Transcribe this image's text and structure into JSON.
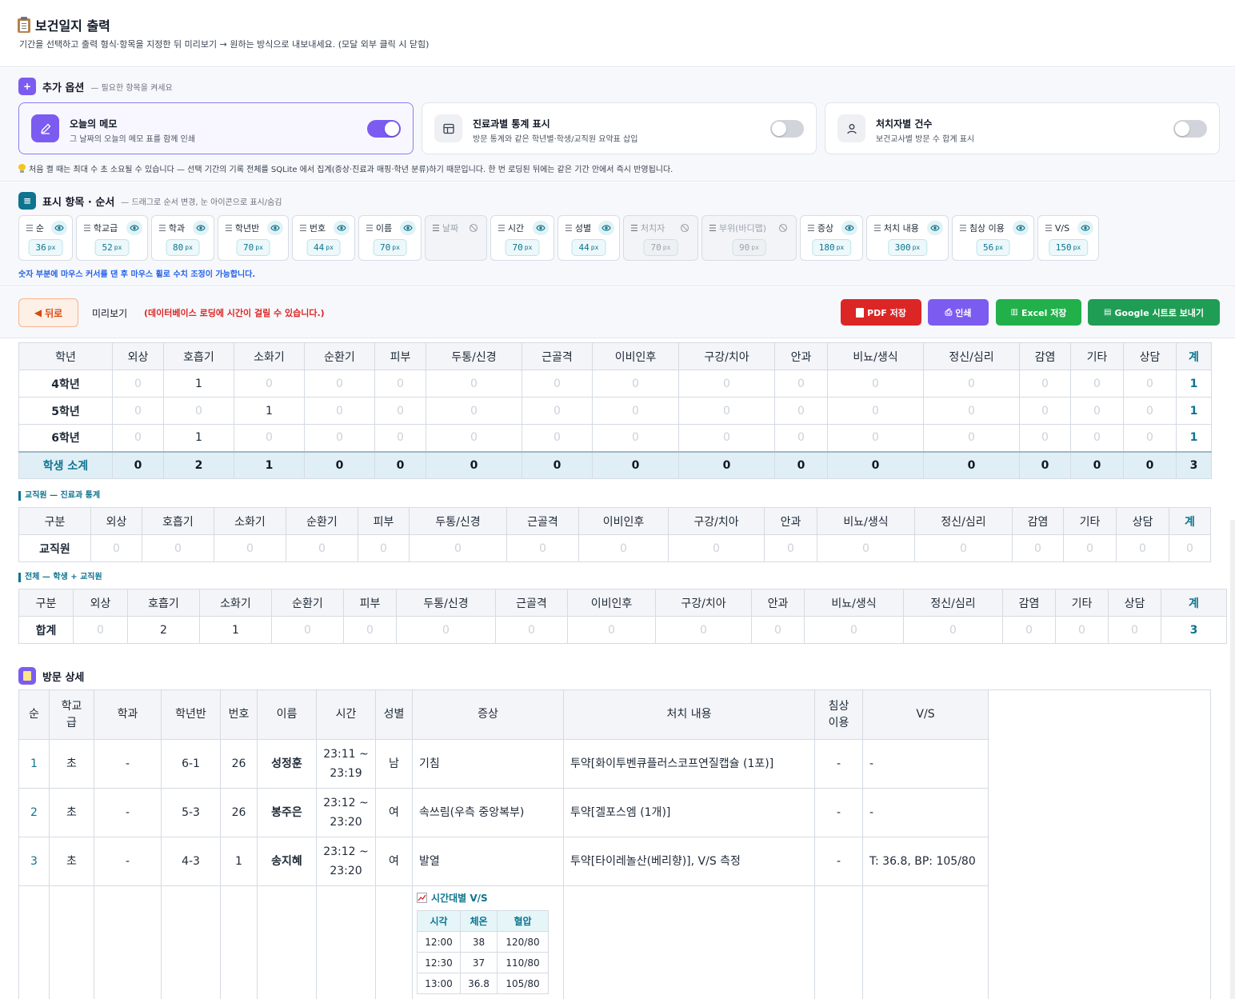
{
  "header": {
    "title": "보건일지 출력",
    "subtitle": "기간을 선택하고 출력 형식·항목을 지정한 뒤 미리보기 → 원하는 방식으로 내보내세요. (모달 외부 클릭 시 닫힘)"
  },
  "options": {
    "badge": "+",
    "title": "추가 옵션",
    "desc": "— 필요한 항목을 켜세요",
    "cards": [
      {
        "name": "오늘의 메모",
        "desc": "그 날짜의 오늘의 메모 표를 함께 인쇄",
        "on": true,
        "icon": "pencil-icon"
      },
      {
        "name": "진료과별 통계 표시",
        "desc": "방문 통계와 같은 학년별·학생/교직원 요약표 삽입",
        "on": false,
        "icon": "table-icon"
      },
      {
        "name": "처치자별 건수",
        "desc": "보건교사별 방문 수 합계 표시",
        "on": false,
        "icon": "person-icon"
      }
    ],
    "tip": "처음 켤 때는 최대 수 초 소요될 수 있습니다 — 선택 기간의 기록 전체를 SQLite 에서 집계(증상·진료과 매핑·학년 분류)하기 때문입니다. 한 번 로딩된 뒤에는 같은 기간 안에서 즉시 반영됩니다."
  },
  "columns": {
    "badge": "≡",
    "title": "표시 항목 · 순서",
    "desc": "— 드래그로 순서 변경, 눈 아이콘으로 표시/숨김",
    "unit": "px",
    "items": [
      {
        "label": "순",
        "width": "36",
        "visible": true
      },
      {
        "label": "학교급",
        "width": "52",
        "visible": true
      },
      {
        "label": "학과",
        "width": "80",
        "visible": true
      },
      {
        "label": "학년반",
        "width": "70",
        "visible": true
      },
      {
        "label": "번호",
        "width": "44",
        "visible": true
      },
      {
        "label": "이름",
        "width": "70",
        "visible": true
      },
      {
        "label": "날짜",
        "width": "",
        "visible": false
      },
      {
        "label": "시간",
        "width": "70",
        "visible": true
      },
      {
        "label": "성별",
        "width": "44",
        "visible": true
      },
      {
        "label": "처치자",
        "width": "70",
        "visible": false
      },
      {
        "label": "부위(바디맵)",
        "width": "90",
        "visible": false
      },
      {
        "label": "증상",
        "width": "180",
        "visible": true
      },
      {
        "label": "처치 내용",
        "width": "300",
        "visible": true
      },
      {
        "label": "침상 이용",
        "width": "56",
        "visible": true
      },
      {
        "label": "V/S",
        "width": "150",
        "visible": true
      }
    ],
    "tip": "숫자 부분에 마우스 커서를 댄 후 마우스 휠로 수치 조정이 가능합니다."
  },
  "actions": {
    "back": "뒤로",
    "preview": "미리보기",
    "loading_note": "(데이터베이스 로딩에 시간이 걸릴 수 있습니다.)",
    "pdf": "PDF 저장",
    "print": "인쇄",
    "excel": "Excel 저장",
    "google": "Google 시트로 보내기",
    "colors": {
      "pdf": "#dc2626",
      "print": "#7c5cf0",
      "excel": "#22b04b",
      "google": "#1f9d55",
      "back": "#d9480f"
    }
  },
  "categories": [
    "외상",
    "호흡기",
    "소화기",
    "순환기",
    "피부",
    "두통/신경",
    "근골격",
    "이비인후",
    "구강/치아",
    "안과",
    "비뇨/생식",
    "정신/심리",
    "감염",
    "기타",
    "상담"
  ],
  "total_label": "계",
  "student_table": {
    "first_header": "학년",
    "rows": [
      {
        "label": "4학년",
        "values": [
          0,
          1,
          0,
          0,
          0,
          0,
          0,
          0,
          0,
          0,
          0,
          0,
          0,
          0,
          0
        ],
        "total": 1
      },
      {
        "label": "5학년",
        "values": [
          0,
          0,
          1,
          0,
          0,
          0,
          0,
          0,
          0,
          0,
          0,
          0,
          0,
          0,
          0
        ],
        "total": 1
      },
      {
        "label": "6학년",
        "values": [
          0,
          1,
          0,
          0,
          0,
          0,
          0,
          0,
          0,
          0,
          0,
          0,
          0,
          0,
          0
        ],
        "total": 1
      }
    ],
    "subtotal": {
      "label": "학생 소계",
      "values": [
        0,
        2,
        1,
        0,
        0,
        0,
        0,
        0,
        0,
        0,
        0,
        0,
        0,
        0,
        0
      ],
      "total": 3
    }
  },
  "staff_table": {
    "caption": "교직원 — 진료과 통계",
    "first_header": "구분",
    "rows": [
      {
        "label": "교직원",
        "values": [
          0,
          0,
          0,
          0,
          0,
          0,
          0,
          0,
          0,
          0,
          0,
          0,
          0,
          0,
          0
        ],
        "total": 0
      }
    ]
  },
  "all_table": {
    "caption": "전체 — 학생 + 교직원",
    "first_header": "구분",
    "rows": [
      {
        "label": "합계",
        "values": [
          0,
          2,
          1,
          0,
          0,
          0,
          0,
          0,
          0,
          0,
          0,
          0,
          0,
          0,
          0
        ],
        "total": 3
      }
    ]
  },
  "detail": {
    "title": "방문 상세",
    "headers": [
      "순",
      "학교\n급",
      "학과",
      "학년반",
      "번호",
      "이름",
      "시간",
      "성별",
      "증상",
      "처치 내용",
      "침상\n이용",
      "V/S"
    ],
    "rows": [
      {
        "no": "1",
        "level": "초",
        "dept": "-",
        "class": "6-1",
        "num": "26",
        "name": "성정훈",
        "time": "23:11 ~\n23:19",
        "sex": "남",
        "symptom": "기침",
        "treatment": "투약[화이투벤큐플러스코프연질캡슐 (1포)]",
        "bed": "-",
        "vs": "-"
      },
      {
        "no": "2",
        "level": "초",
        "dept": "-",
        "class": "5-3",
        "num": "26",
        "name": "봉주은",
        "time": "23:12 ~\n23:20",
        "sex": "여",
        "symptom": "속쓰림(우측 중앙복부)",
        "treatment": "투약[겔포스엠 (1개)]",
        "bed": "-",
        "vs": "-"
      },
      {
        "no": "3",
        "level": "초",
        "dept": "-",
        "class": "4-3",
        "num": "1",
        "name": "송지혜",
        "time": "23:12 ~\n23:20",
        "sex": "여",
        "symptom": "발열",
        "treatment": "투약[타이레놀산(베리향)], V/S 측정",
        "bed": "-",
        "vs": "T: 36.8, BP: 105/80"
      }
    ],
    "vs_history": {
      "title": "시간대별 V/S",
      "headers": [
        "시각",
        "체온",
        "혈압"
      ],
      "rows": [
        [
          "12:00",
          "38",
          "120/80"
        ],
        [
          "12:30",
          "37",
          "110/80"
        ],
        [
          "13:00",
          "36.8",
          "105/80"
        ]
      ]
    }
  }
}
